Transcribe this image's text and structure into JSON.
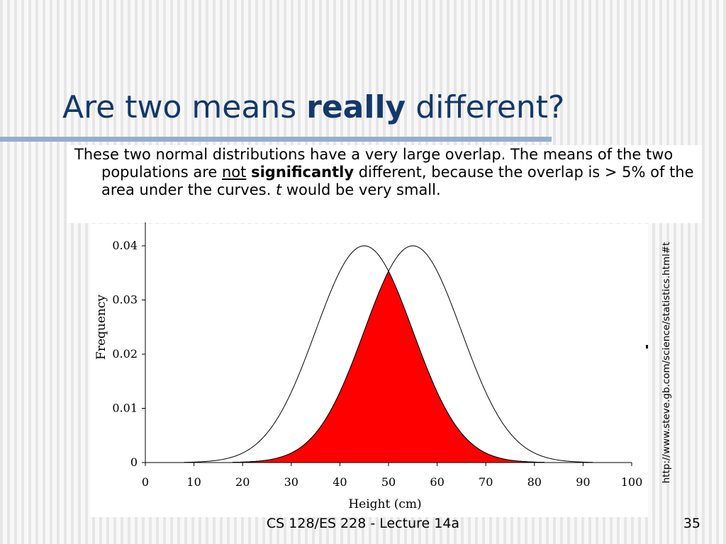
{
  "slide": {
    "title_before": "Are two means ",
    "title_bold": "really",
    "title_after": " different?",
    "para": {
      "p1": "These two normal distributions have a very large overlap. The means of the two populations are ",
      "p_not": "not",
      "p_space": " ",
      "p_sig": "significantly",
      "p2": " different, because the overlap is > 5% of the area under the curves. ",
      "p_t": "t",
      "p3": " would be very small."
    },
    "source_url": "http://www.steve.gb.com/science/statistics.html#t",
    "footer": "CS 128/ES 228 - Lecture 14a",
    "page_number": "35"
  },
  "chart_data": {
    "type": "line",
    "title": "",
    "xlabel": "Height (cm)",
    "ylabel": "Frequency",
    "xlim": [
      0,
      100
    ],
    "ylim": [
      0,
      0.04
    ],
    "xticks": [
      "0",
      "10",
      "20",
      "30",
      "40",
      "50",
      "60",
      "70",
      "80",
      "90",
      "100"
    ],
    "yticks": [
      "0",
      "0.01",
      "0.02",
      "0.03",
      "0.04"
    ],
    "grid": false,
    "legend": "none",
    "series": [
      {
        "mean": 45,
        "sd": 10,
        "peak": 0.04
      },
      {
        "mean": 55,
        "sd": 10,
        "peak": 0.04
      }
    ],
    "overlap_fill": {
      "color": "#ff0000",
      "peak": 0.035,
      "at_x": 50
    },
    "colors": {
      "curve": "#000000",
      "fill": "#ff0000"
    }
  }
}
